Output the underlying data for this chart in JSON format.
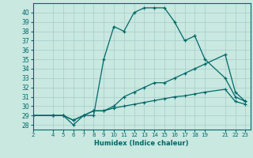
{
  "xlabel": "Humidex (Indice chaleur)",
  "bg_color": "#c8e8e0",
  "grid_color": "#a8ccc8",
  "line_color": "#006868",
  "x_ticks": [
    2,
    4,
    5,
    6,
    7,
    8,
    9,
    10,
    11,
    12,
    13,
    14,
    15,
    16,
    17,
    18,
    19,
    21,
    22,
    23
  ],
  "ylim": [
    27.5,
    41.0
  ],
  "xlim": [
    2,
    23.5
  ],
  "y_ticks": [
    28,
    29,
    30,
    31,
    32,
    33,
    34,
    35,
    36,
    37,
    38,
    39,
    40
  ],
  "line1_x": [
    2,
    4,
    5,
    6,
    7,
    8,
    9,
    10,
    11,
    12,
    13,
    14,
    15,
    16,
    17,
    18,
    19,
    21,
    22,
    23
  ],
  "line1_y": [
    29,
    29,
    29,
    28,
    29,
    29,
    35,
    38.5,
    38,
    40,
    40.5,
    40.5,
    40.5,
    39,
    37,
    37.5,
    35,
    33,
    31,
    30.5
  ],
  "line2_x": [
    2,
    4,
    5,
    6,
    7,
    8,
    9,
    10,
    11,
    12,
    13,
    14,
    15,
    16,
    17,
    18,
    19,
    21,
    22,
    23
  ],
  "line2_y": [
    29,
    29,
    29,
    28.5,
    29,
    29.5,
    29.5,
    30,
    31,
    31.5,
    32,
    32.5,
    32.5,
    33,
    33.5,
    34,
    34.5,
    35.5,
    31.5,
    30.5
  ],
  "line3_x": [
    2,
    4,
    5,
    6,
    7,
    8,
    9,
    10,
    11,
    12,
    13,
    14,
    15,
    16,
    17,
    18,
    19,
    21,
    22,
    23
  ],
  "line3_y": [
    29,
    29,
    29,
    28.5,
    29,
    29.5,
    29.5,
    29.8,
    30,
    30.2,
    30.4,
    30.6,
    30.8,
    31,
    31.1,
    31.3,
    31.5,
    31.8,
    30.5,
    30.2
  ]
}
